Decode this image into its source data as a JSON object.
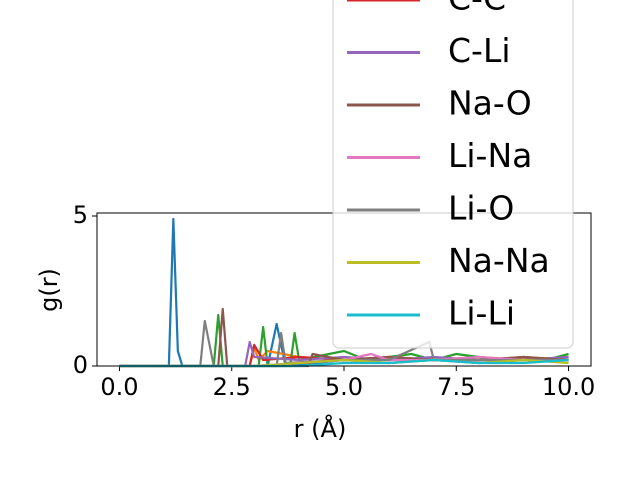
{
  "chart_data": {
    "type": "line",
    "xlabel": "r (Å)",
    "ylabel": "g(r)",
    "xlim": [
      -0.5,
      10.5
    ],
    "ylim": [
      0,
      5.1
    ],
    "xticks": [
      {
        "value": 0,
        "label": "0.0"
      },
      {
        "value": 2.5,
        "label": "2.5"
      },
      {
        "value": 5,
        "label": "5.0"
      },
      {
        "value": 7.5,
        "label": "7.5"
      },
      {
        "value": 10,
        "label": "10.0"
      }
    ],
    "yticks": [
      0,
      5
    ],
    "legend": "upper right",
    "series": [
      {
        "color": "#1f77b4",
        "x": [
          0,
          1.1,
          1.2,
          1.3,
          1.4,
          3.3,
          3.5,
          3.7,
          5,
          6,
          7,
          8,
          9,
          10
        ],
        "values": [
          0,
          0,
          4.9,
          0.5,
          0,
          0,
          1.4,
          0,
          0.2,
          0.1,
          0.2,
          0.1,
          0.2,
          0.3
        ]
      },
      {
        "color": "#ff7f0e",
        "x": [
          0,
          2.9,
          3.0,
          3.1,
          3.3,
          4,
          5,
          6,
          7,
          8,
          9,
          10
        ],
        "values": [
          0,
          0,
          0.6,
          0.2,
          0.5,
          0.3,
          0.2,
          0.3,
          0.2,
          0.3,
          0.2,
          0.2
        ]
      },
      {
        "color": "#2ca02c",
        "x": [
          0,
          2.1,
          2.2,
          2.3,
          3.1,
          3.2,
          3.3,
          3.8,
          3.9,
          4.0,
          5,
          5.5,
          6,
          6.5,
          7,
          7.5,
          8,
          8.5,
          9,
          9.5,
          10
        ],
        "values": [
          0,
          0,
          1.7,
          0,
          0,
          1.3,
          0,
          0,
          1.1,
          0.2,
          0.5,
          0.2,
          0.3,
          0.4,
          0.2,
          0.4,
          0.3,
          0.2,
          0.3,
          0.2,
          0.4
        ]
      },
      {
        "name": "C-C",
        "color": "#d62728",
        "x": [
          0,
          2.9,
          3.0,
          3.2,
          4,
          5,
          6,
          7,
          8,
          9,
          10
        ],
        "values": [
          0,
          0,
          0.7,
          0.2,
          0.3,
          0.2,
          0.3,
          0.2,
          0.2,
          0.3,
          0.2
        ]
      },
      {
        "name": "C-Li",
        "color": "#9467bd",
        "x": [
          0,
          2.8,
          2.9,
          3.0,
          4,
          5,
          6,
          7,
          8,
          9,
          10
        ],
        "values": [
          0,
          0,
          0.8,
          0.3,
          0.2,
          0.3,
          0.2,
          0.3,
          0.2,
          0.2,
          0.3
        ]
      },
      {
        "name": "Na-O",
        "color": "#8c564b",
        "x": [
          0,
          2.2,
          2.3,
          2.4,
          4.2,
          4.3,
          5,
          6,
          7,
          8,
          9,
          10
        ],
        "values": [
          0,
          0,
          1.9,
          0,
          0,
          0.4,
          0.2,
          0.3,
          0.2,
          0.2,
          0.3,
          0.2
        ]
      },
      {
        "name": "Li-Na",
        "color": "#e377c2",
        "x": [
          0,
          3,
          4,
          5,
          5.6,
          6,
          7,
          8,
          9,
          10
        ],
        "values": [
          0,
          0,
          0.1,
          0.2,
          0.4,
          0.2,
          0.2,
          0.3,
          0.2,
          0.2
        ]
      },
      {
        "name": "Li-O",
        "color": "#7f7f7f",
        "x": [
          0,
          1.8,
          1.9,
          2.1,
          3.5,
          3.6,
          3.7,
          5,
          6,
          6.9,
          7,
          8,
          9,
          10
        ],
        "values": [
          0,
          0,
          1.5,
          0,
          0,
          1.1,
          0.1,
          0.2,
          0.2,
          0.8,
          0.2,
          0.2,
          0.2,
          0.2
        ]
      },
      {
        "name": "Na-Na",
        "color": "#bcbd22",
        "x": [
          0,
          3,
          4,
          5,
          6,
          7,
          8,
          9,
          10
        ],
        "values": [
          0,
          0,
          0.1,
          0.2,
          0.1,
          0.2,
          0.1,
          0.2,
          0.1
        ]
      },
      {
        "name": "Li-Li",
        "color": "#17becf",
        "x": [
          0,
          4,
          5,
          6,
          7,
          8,
          9,
          10
        ],
        "values": [
          0,
          0,
          0.1,
          0.1,
          0.2,
          0.1,
          0.1,
          0.2
        ]
      }
    ]
  }
}
